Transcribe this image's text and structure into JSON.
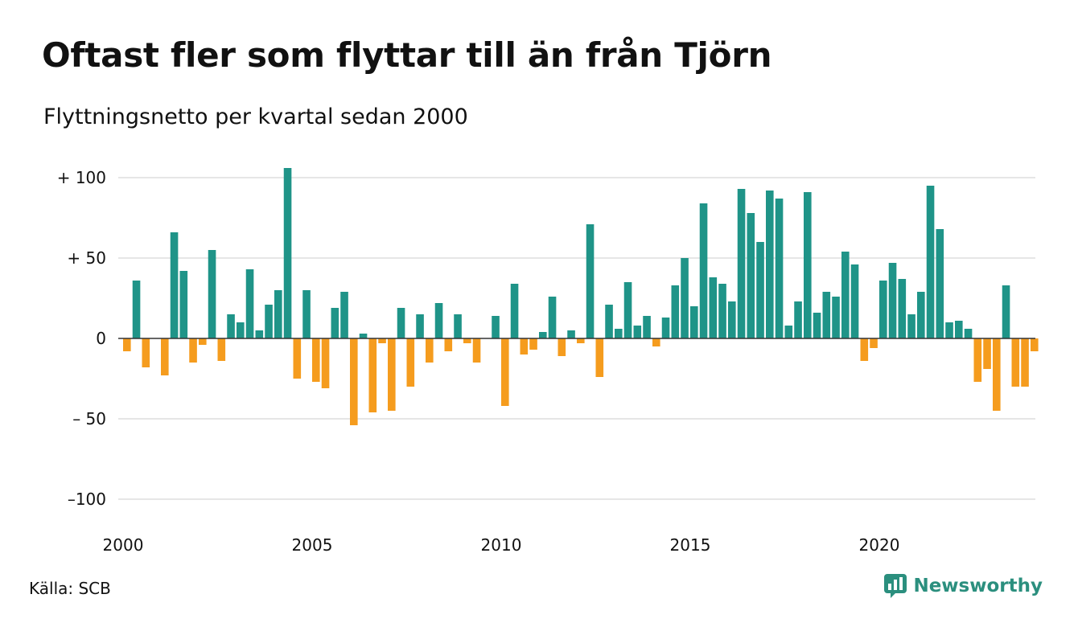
{
  "title": "Oftast fler som flyttar till än från Tjörn",
  "subtitle": "Flyttningsnetto per kvartal sedan 2000",
  "source": "Källa: SCB",
  "brand": "Newsworthy",
  "colors": {
    "positive": "#1f9488",
    "negative": "#f59c1e",
    "grid": "#dddddd",
    "text": "#111111",
    "brand": "#2b8f7e"
  },
  "chart_data": {
    "type": "bar",
    "title": "Oftast fler som flyttar till än från Tjörn",
    "subtitle": "Flyttningsnetto per kvartal sedan 2000",
    "x_start_year": 2000,
    "periods_per_year": 4,
    "xticks": [
      2000,
      2005,
      2010,
      2015,
      2020
    ],
    "xtick_labels": [
      "2000",
      "2005",
      "2010",
      "2015",
      "2020"
    ],
    "ylim": [
      -100,
      110
    ],
    "yticks": [
      100,
      50,
      0,
      -50,
      -100
    ],
    "ytick_labels": [
      "+ 100",
      "+  50",
      "0",
      "– 50",
      "–100"
    ],
    "grid": true,
    "values": [
      -8,
      36,
      -18,
      0,
      -23,
      66,
      42,
      -15,
      -4,
      55,
      -14,
      15,
      10,
      43,
      5,
      21,
      30,
      106,
      -25,
      30,
      -27,
      -31,
      19,
      29,
      -54,
      3,
      -46,
      -3,
      -45,
      19,
      -30,
      15,
      -15,
      22,
      -8,
      15,
      -3,
      -15,
      0,
      14,
      -42,
      34,
      -10,
      -7,
      4,
      26,
      -11,
      5,
      -3,
      71,
      -24,
      21,
      6,
      35,
      8,
      14,
      -5,
      13,
      33,
      50,
      20,
      84,
      38,
      34,
      23,
      93,
      78,
      60,
      92,
      87,
      8,
      23,
      91,
      16,
      29,
      26,
      54,
      46,
      -14,
      -6,
      36,
      47,
      37,
      15,
      29,
      95,
      68,
      10,
      11,
      6,
      -27,
      -19,
      -45,
      33,
      -30,
      -30,
      -8
    ]
  }
}
